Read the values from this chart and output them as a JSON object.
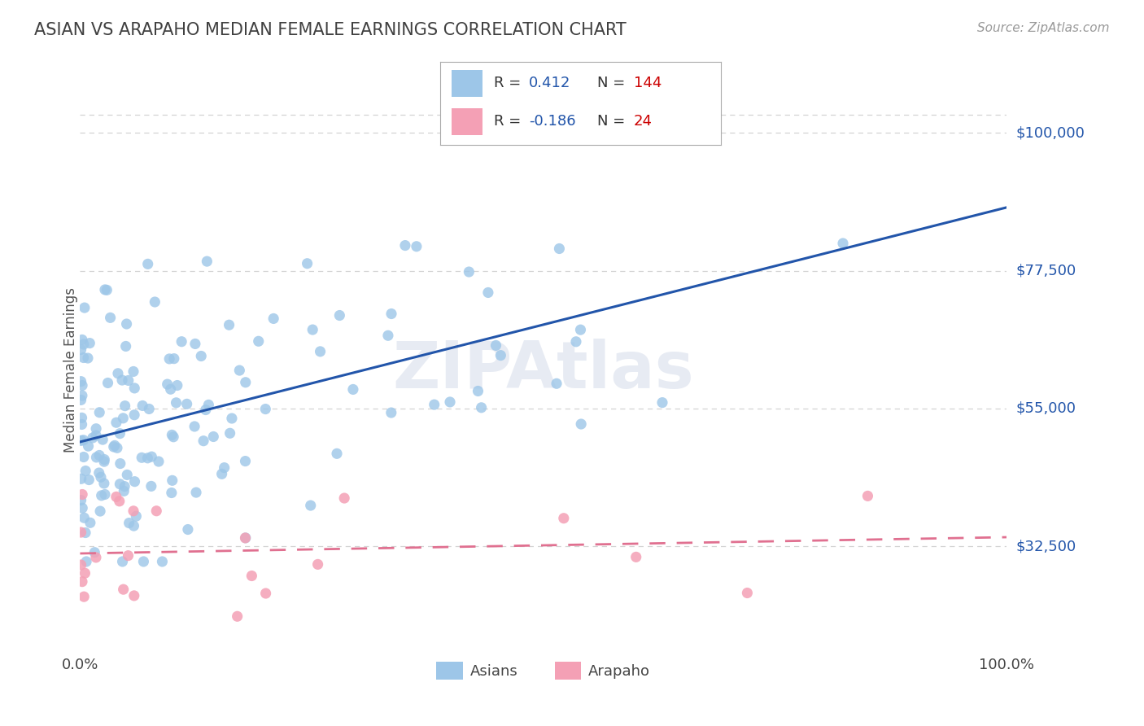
{
  "title": "ASIAN VS ARAPAHO MEDIAN FEMALE EARNINGS CORRELATION CHART",
  "source_text": "Source: ZipAtlas.com",
  "ylabel": "Median Female Earnings",
  "xmin": 0.0,
  "xmax": 1.0,
  "ymin": 15000,
  "ymax": 107500,
  "yticks": [
    32500,
    55000,
    77500,
    100000
  ],
  "ytick_labels": [
    "$32,500",
    "$55,000",
    "$77,500",
    "$100,000"
  ],
  "xtick_labels": [
    "0.0%",
    "100.0%"
  ],
  "asian_color": "#9dc6e8",
  "arapaho_color": "#f4a0b5",
  "asian_line_color": "#2255aa",
  "arapaho_line_color": "#e07090",
  "watermark": "ZIPAtlas",
  "asian_r": 0.412,
  "asian_n": 144,
  "arapaho_r": -0.186,
  "arapaho_n": 24,
  "background_color": "#ffffff",
  "grid_color": "#c8c8c8",
  "title_color": "#404040",
  "ylabel_color": "#555555",
  "tick_label_color_blue": "#2255aa",
  "legend_r_color": "#333333",
  "legend_val_color": "#2255aa",
  "legend_n_color": "#333333",
  "legend_nval_color": "#cc0000"
}
